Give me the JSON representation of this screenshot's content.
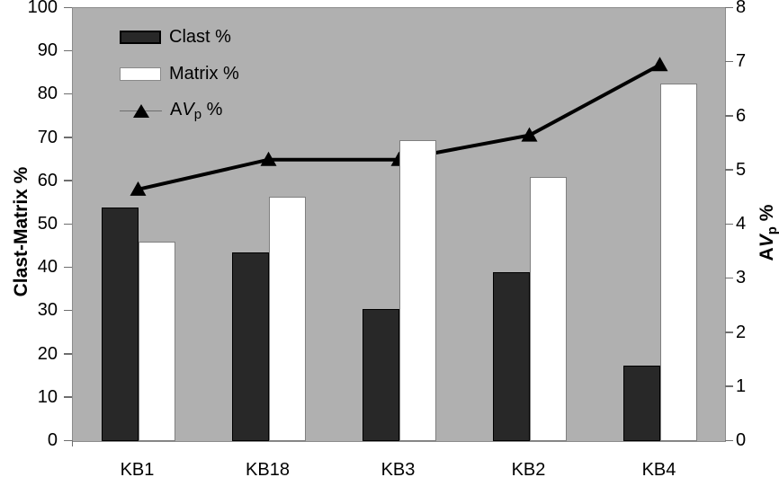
{
  "chart_data": {
    "type": "bar+line",
    "categories": [
      "KB1",
      "KB18",
      "KB3",
      "KB2",
      "KB4"
    ],
    "series": [
      {
        "name": "Clast %",
        "type": "bar",
        "axis": "left",
        "color": "#282828",
        "values": [
          54,
          43.5,
          30.5,
          39,
          17.5
        ]
      },
      {
        "name": "Matrix %",
        "type": "bar",
        "axis": "left",
        "color": "#ffffff",
        "values": [
          46,
          56.5,
          69.5,
          61,
          82.5
        ]
      },
      {
        "name": "AVp %",
        "type": "line",
        "axis": "right",
        "color": "#000000",
        "marker": "filled-triangle",
        "values": [
          4.65,
          5.2,
          5.2,
          5.65,
          6.95
        ]
      }
    ],
    "left_axis": {
      "label": "Clast-Matrix %",
      "min": 0,
      "max": 100,
      "tick_step": 10,
      "ticks": [
        0,
        10,
        20,
        30,
        40,
        50,
        60,
        70,
        80,
        90,
        100
      ]
    },
    "right_axis": {
      "label_parts": {
        "prefix": "A",
        "italic": "V",
        "sub": "p",
        "suffix": " %"
      },
      "min": 0,
      "max": 8,
      "tick_step": 1,
      "ticks": [
        0,
        1,
        2,
        3,
        4,
        5,
        6,
        7,
        8
      ]
    },
    "plot_background": "#b0b0b0",
    "grid": false,
    "legend_position": "top-left-inside"
  },
  "legend": {
    "clast_label": "Clast %",
    "matrix_label": "Matrix %",
    "avp_label_parts": {
      "prefix": "A",
      "italic": "V",
      "sub": "p",
      "suffix": " %"
    }
  }
}
